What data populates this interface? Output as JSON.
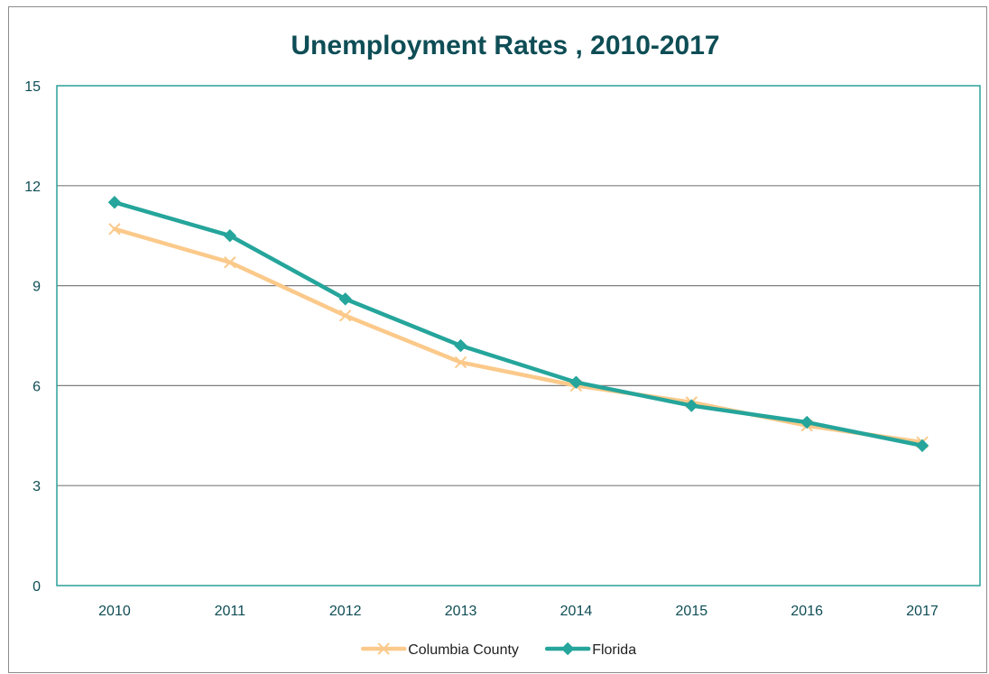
{
  "chart_data": {
    "type": "line",
    "title": "Unemployment Rates , 2010-2017",
    "xlabel": "",
    "ylabel": "",
    "categories": [
      "2010",
      "2011",
      "2012",
      "2013",
      "2014",
      "2015",
      "2016",
      "2017"
    ],
    "ylim": [
      0,
      15
    ],
    "yticks": [
      0,
      3,
      6,
      9,
      12,
      15
    ],
    "grid": true,
    "legend_position": "bottom",
    "series": [
      {
        "name": "Columbia County",
        "values": [
          10.7,
          9.7,
          8.1,
          6.7,
          6.0,
          5.5,
          4.8,
          4.3
        ],
        "color": "#fbc98a",
        "marker": "x"
      },
      {
        "name": "Florida",
        "values": [
          11.5,
          10.5,
          8.6,
          7.2,
          6.1,
          5.4,
          4.9,
          4.2
        ],
        "color": "#25a59b",
        "marker": "diamond"
      }
    ],
    "colors": {
      "title": "#0e4d55",
      "axis_text": "#0e4d55",
      "plot_border": "#2aa198",
      "gridline": "#7f7f7f"
    }
  }
}
